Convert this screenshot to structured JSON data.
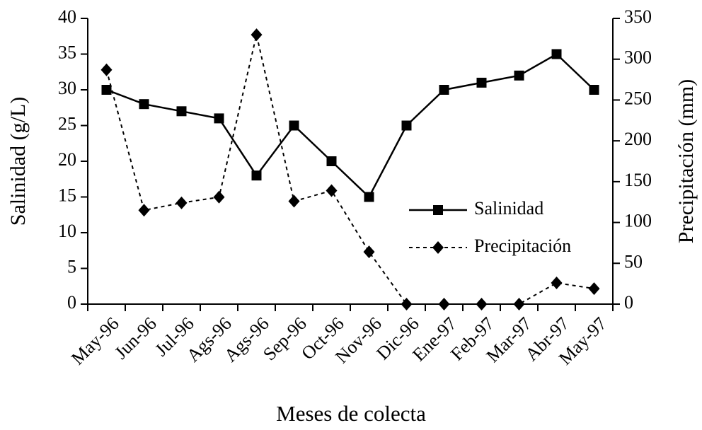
{
  "chart_data": {
    "type": "line",
    "categories": [
      "May-96",
      "Jun-96",
      "Jul-96",
      "Ags-96",
      "Ags-96",
      "Sep-96",
      "Oct-96",
      "Nov-96",
      "Dic-96",
      "Ene-97",
      "Feb-97",
      "Mar-97",
      "Abr-97",
      "May-97"
    ],
    "series": [
      {
        "name": "Salinidad",
        "color": "#000000",
        "line_style": "solid",
        "marker": "square",
        "values": [
          30,
          28,
          27,
          26,
          18,
          25,
          20,
          15,
          25,
          30,
          31,
          32,
          35,
          30
        ]
      },
      {
        "name": "Precipitación",
        "color": "#000000",
        "line_style": "dashed",
        "marker": "diamond",
        "axis": "y2",
        "values": [
          287,
          115,
          124,
          131,
          330,
          126,
          139,
          64,
          0,
          0,
          0,
          0,
          26,
          19
        ]
      }
    ],
    "xlabel": "Meses de colecta",
    "ylabel": "Salinidad (g/L)",
    "y2label": "Precipitación (mm)",
    "ylim": [
      0,
      40
    ],
    "yticks": [
      0,
      5,
      10,
      15,
      20,
      25,
      30,
      35,
      40
    ],
    "y2lim": [
      0,
      350
    ],
    "y2ticks": [
      0,
      50,
      100,
      150,
      200,
      250,
      300,
      350
    ],
    "grid": false
  }
}
